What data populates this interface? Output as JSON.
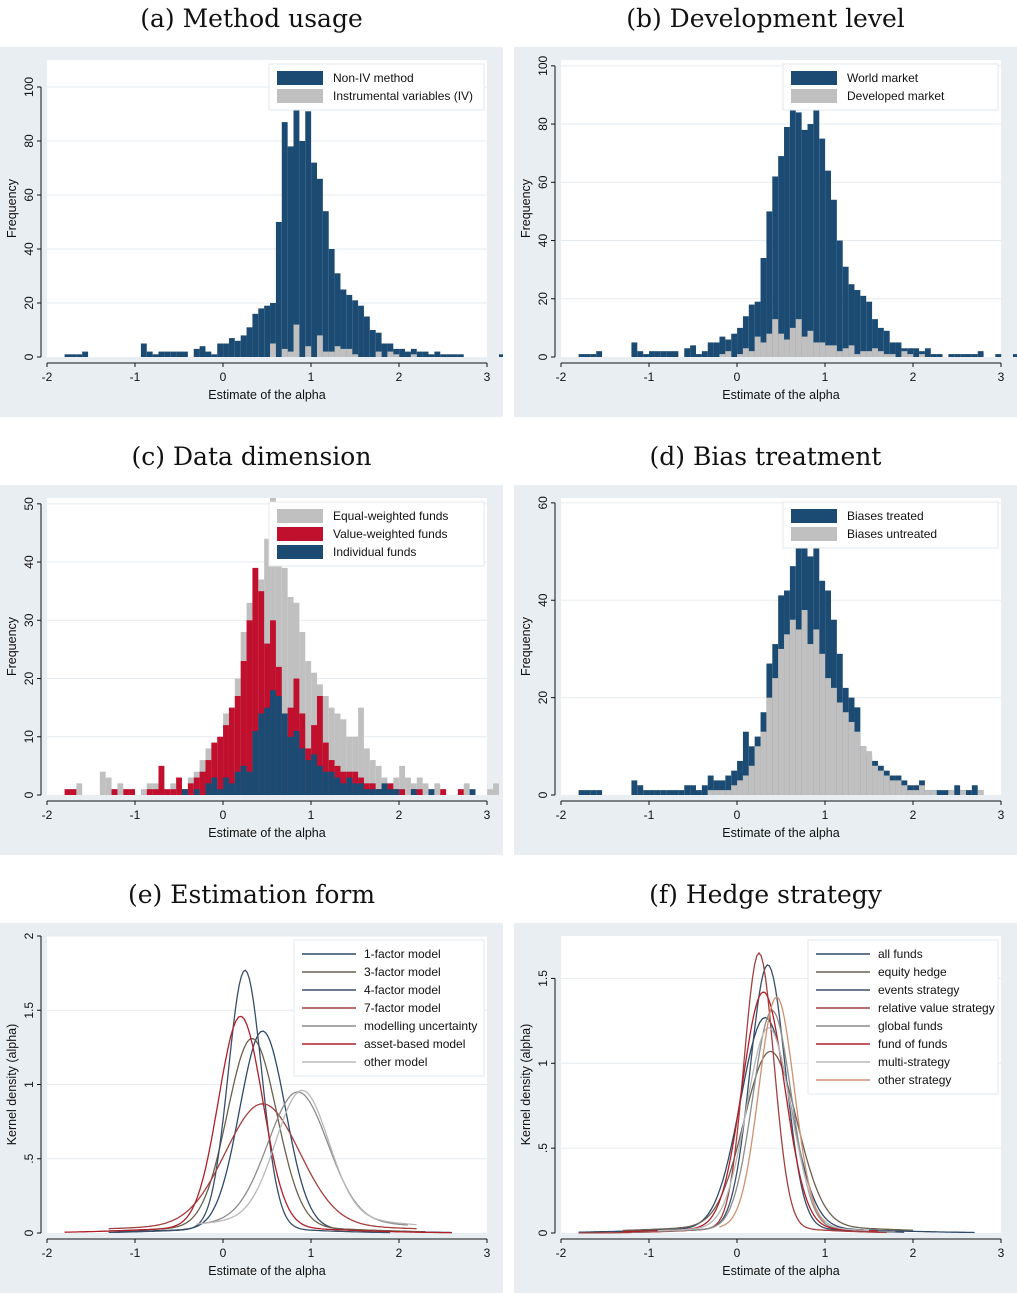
{
  "panels": [
    {
      "id": "a",
      "title": "(a) Method usage"
    },
    {
      "id": "b",
      "title": "(b) Development level"
    },
    {
      "id": "c",
      "title": "(c) Data dimension"
    },
    {
      "id": "d",
      "title": "(d) Bias treatment"
    },
    {
      "id": "e",
      "title": "(e) Estimation form"
    },
    {
      "id": "f",
      "title": "(f) Hedge strategy"
    }
  ],
  "chart_data": [
    {
      "type": "histogram",
      "title": "(a) Method usage",
      "xlabel": "Estimate of the alpha",
      "ylabel": "Frequency",
      "xlim": [
        -2,
        3
      ],
      "ylim": [
        0,
        110
      ],
      "xticks": [
        -2,
        -1,
        0,
        1,
        2,
        3
      ],
      "yticks": [
        0,
        20,
        40,
        60,
        80,
        100
      ],
      "grid": true,
      "legend_position": "top-right",
      "bin_start": -1.8,
      "bin_width": 0.0667,
      "series": [
        {
          "name": "Non-IV method",
          "color": "#1b4b72",
          "values": [
            1,
            1,
            1,
            2,
            0,
            0,
            0,
            0,
            0,
            0,
            0,
            0,
            0,
            5,
            2,
            1,
            2,
            2,
            2,
            2,
            2,
            0,
            3,
            4,
            2,
            1,
            5,
            5,
            7,
            6,
            8,
            11,
            16,
            18,
            19,
            20,
            50,
            87,
            78,
            96,
            80,
            91,
            72,
            66,
            54,
            40,
            31,
            25,
            23,
            21,
            19,
            15,
            10,
            9,
            5,
            5,
            3,
            3,
            2,
            3,
            2,
            2,
            1,
            2,
            1,
            1,
            1,
            1,
            0,
            0,
            0,
            0,
            0,
            0,
            1,
            0,
            0,
            1
          ]
        },
        {
          "name": "Instrumental variables (IV)",
          "color": "#c0c0c0",
          "values": [
            0,
            0,
            0,
            0,
            0,
            0,
            0,
            0,
            0,
            0,
            0,
            0,
            0,
            0,
            0,
            0,
            0,
            0,
            0,
            0,
            0,
            0,
            0,
            0,
            0,
            0,
            0,
            0,
            0,
            0,
            0,
            0,
            0,
            0,
            0,
            5,
            0,
            3,
            2,
            12,
            0,
            4,
            0,
            8,
            2,
            2,
            4,
            3,
            3,
            1,
            0,
            0,
            0,
            2,
            0,
            2,
            1,
            0,
            0,
            1,
            0,
            0,
            0,
            0,
            0,
            0,
            0,
            0,
            0,
            0,
            0,
            0,
            0,
            0,
            0,
            0,
            0,
            0
          ]
        }
      ]
    },
    {
      "type": "histogram",
      "title": "(b) Development level",
      "xlabel": "Estimate of the alpha",
      "ylabel": "Frequency",
      "xlim": [
        -2,
        3
      ],
      "ylim": [
        0,
        102
      ],
      "xticks": [
        -2,
        -1,
        0,
        1,
        2,
        3
      ],
      "yticks": [
        0,
        20,
        40,
        60,
        80,
        100
      ],
      "grid": true,
      "legend_position": "top-right",
      "bin_start": -1.8,
      "bin_width": 0.0667,
      "series": [
        {
          "name": "World market",
          "color": "#1b4b72",
          "values": [
            1,
            1,
            1,
            2,
            0,
            0,
            0,
            0,
            0,
            5,
            2,
            1,
            2,
            2,
            2,
            2,
            2,
            0,
            3,
            4,
            1,
            2,
            5,
            5,
            7,
            6,
            8,
            10,
            14,
            18,
            19,
            34,
            50,
            62,
            69,
            79,
            85,
            84,
            78,
            80,
            98,
            75,
            64,
            54,
            40,
            31,
            25,
            23,
            21,
            19,
            13,
            10,
            9,
            5,
            5,
            3,
            3,
            3,
            2,
            3,
            1,
            1,
            0,
            1,
            1,
            1,
            1,
            1,
            2,
            0,
            0,
            1,
            0,
            0,
            1,
            0,
            0,
            0
          ]
        },
        {
          "name": "Developed market",
          "color": "#c0c0c0",
          "values": [
            0,
            0,
            0,
            0,
            0,
            0,
            0,
            0,
            0,
            0,
            0,
            0,
            0,
            0,
            0,
            0,
            0,
            0,
            0,
            0,
            0,
            0,
            0,
            0,
            1,
            2,
            0,
            1,
            3,
            2,
            7,
            5,
            8,
            13,
            8,
            6,
            10,
            13,
            7,
            9,
            5,
            5,
            4,
            4,
            2,
            3,
            4,
            1,
            2,
            2,
            3,
            2,
            1,
            1,
            0,
            2,
            1,
            0,
            1,
            0,
            0,
            0,
            0,
            0,
            0,
            0,
            0,
            0,
            0,
            0,
            0,
            0,
            0,
            0,
            0,
            0,
            0,
            0
          ]
        }
      ]
    },
    {
      "type": "histogram",
      "title": "(c) Data dimension",
      "xlabel": "Estimate of the alpha",
      "ylabel": "Frequency",
      "xlim": [
        -2,
        3
      ],
      "ylim": [
        0,
        51
      ],
      "xticks": [
        -2,
        -1,
        0,
        1,
        2,
        3
      ],
      "yticks": [
        0,
        10,
        20,
        30,
        40,
        50
      ],
      "grid": true,
      "legend_position": "top-right",
      "bin_start": -1.8,
      "bin_width": 0.0667,
      "series": [
        {
          "name": "Equal-weighted funds",
          "color": "#c0c0c0",
          "values": [
            1,
            1,
            2,
            0,
            0,
            0,
            4,
            3,
            1,
            2,
            1,
            1,
            0,
            1,
            2,
            2,
            1,
            1,
            2,
            0,
            1,
            3,
            4,
            6,
            8,
            7,
            6,
            14,
            15,
            20,
            28,
            33,
            35,
            37,
            44,
            51,
            48,
            39,
            34,
            33,
            28,
            23,
            21,
            19,
            17,
            15,
            14,
            13,
            10,
            10,
            15,
            8,
            6,
            5,
            3,
            2,
            3,
            5,
            3,
            2,
            3,
            2,
            1,
            2,
            1,
            0,
            0,
            1,
            2,
            0,
            0,
            0,
            1,
            2,
            0,
            0,
            2,
            0
          ]
        },
        {
          "name": "Value-weighted funds",
          "color": "#c0102e",
          "values": [
            1,
            1,
            0,
            0,
            0,
            0,
            0,
            0,
            1,
            0,
            1,
            1,
            0,
            0,
            1,
            1,
            5,
            1,
            1,
            3,
            1,
            2,
            3,
            4,
            6,
            9,
            10,
            12,
            15,
            17,
            23,
            30,
            39,
            35,
            26,
            30,
            22,
            10,
            15,
            20,
            14,
            8,
            12,
            17,
            9,
            6,
            5,
            4,
            4,
            4,
            3,
            2,
            2,
            1,
            1,
            2,
            1,
            1,
            0,
            1,
            1,
            0,
            0,
            0,
            1,
            0,
            0,
            1,
            0,
            0,
            0,
            0,
            0,
            0,
            0,
            0,
            0,
            0
          ]
        },
        {
          "name": "Individual funds",
          "color": "#1b4b72",
          "values": [
            0,
            0,
            0,
            0,
            0,
            0,
            0,
            0,
            0,
            0,
            0,
            0,
            0,
            0,
            0,
            0,
            0,
            0,
            0,
            0,
            1,
            0,
            1,
            0,
            2,
            3,
            1,
            3,
            2,
            4,
            5,
            4,
            11,
            14,
            15,
            18,
            17,
            14,
            10,
            11,
            8,
            6,
            7,
            5,
            4,
            4,
            3,
            2,
            3,
            2,
            2,
            1,
            1,
            1,
            2,
            1,
            1,
            0,
            0,
            1,
            0,
            0,
            1,
            0,
            0,
            0,
            0,
            0,
            0,
            1,
            0,
            0,
            0,
            0,
            0,
            0,
            0,
            0
          ]
        }
      ]
    },
    {
      "type": "histogram",
      "title": "(d) Bias treatment",
      "xlabel": "Estimate of the alpha",
      "ylabel": "Frequency",
      "xlim": [
        -2,
        3
      ],
      "ylim": [
        0,
        61
      ],
      "xticks": [
        -2,
        -1,
        0,
        1,
        2,
        3
      ],
      "yticks": [
        0,
        20,
        40,
        60
      ],
      "grid": true,
      "legend_position": "top-right",
      "bin_start": -1.8,
      "bin_width": 0.0667,
      "series": [
        {
          "name": "Biases treated",
          "color": "#1b4b72",
          "values": [
            1,
            1,
            1,
            1,
            0,
            0,
            0,
            0,
            0,
            3,
            2,
            1,
            1,
            1,
            1,
            1,
            1,
            1,
            2,
            2,
            1,
            2,
            4,
            3,
            3,
            4,
            5,
            7,
            13,
            10,
            12,
            17,
            27,
            31,
            41,
            42,
            47,
            55,
            59,
            49,
            53,
            44,
            42,
            36,
            29,
            22,
            20,
            18,
            10,
            8,
            7,
            6,
            5,
            4,
            4,
            3,
            2,
            2,
            3,
            1,
            1,
            1,
            1,
            1,
            2,
            1,
            1,
            2,
            1,
            0,
            0,
            0,
            0,
            0,
            0,
            0,
            0,
            0
          ]
        },
        {
          "name": "Biases untreated",
          "color": "#c0c0c0",
          "values": [
            0,
            0,
            0,
            0,
            0,
            0,
            0,
            0,
            0,
            0,
            0,
            0,
            0,
            0,
            0,
            0,
            0,
            0,
            0,
            0,
            0,
            0,
            1,
            1,
            1,
            1,
            2,
            3,
            4,
            6,
            10,
            13,
            20,
            24,
            30,
            33,
            36,
            34,
            38,
            31,
            34,
            29,
            24,
            22,
            19,
            17,
            15,
            13,
            10,
            9,
            6,
            5,
            4,
            3,
            3,
            2,
            1,
            1,
            2,
            1,
            1,
            0,
            0,
            1,
            0,
            1,
            0,
            0,
            1,
            0,
            0,
            0,
            0,
            0,
            0,
            0,
            1,
            2
          ]
        }
      ]
    },
    {
      "type": "line",
      "title": "(e) Estimation form",
      "xlabel": "Estimate of the alpha",
      "ylabel": "Kernel density (alpha)",
      "xlim": [
        -2,
        3
      ],
      "ylim": [
        0,
        2
      ],
      "xticks": [
        -2,
        -1,
        0,
        1,
        2,
        3
      ],
      "yticks": [
        0,
        0.5,
        1,
        1.5,
        2
      ],
      "ytick_labels": [
        "0",
        ".5",
        "1",
        "1.5",
        "2"
      ],
      "grid": true,
      "legend_position": "top-right",
      "series": [
        {
          "name": "1-factor model",
          "color": "#2d4a6b",
          "mu": 0.45,
          "sigma": 0.26,
          "peak": 1.33,
          "xmin": -1.2,
          "xmax": 2.6,
          "tail": 0.03
        },
        {
          "name": "3-factor model",
          "color": "#6a6150",
          "mu": 0.33,
          "sigma": 0.28,
          "peak": 1.27,
          "xmin": -1.3,
          "xmax": 2.3,
          "tail": 0.04
        },
        {
          "name": "4-factor model",
          "color": "#3a4f68",
          "mu": 0.25,
          "sigma": 0.19,
          "peak": 1.74,
          "xmin": -1.3,
          "xmax": 1.9,
          "tail": 0.03
        },
        {
          "name": "7-factor model",
          "color": "#a33f3f",
          "mu": 0.45,
          "sigma": 0.42,
          "peak": 0.82,
          "xmin": -1.3,
          "xmax": 2.2,
          "tail": 0.05
        },
        {
          "name": "modelling uncertainty",
          "color": "#8c8c8c",
          "mu": 0.85,
          "sigma": 0.34,
          "peak": 0.87,
          "xmin": -0.2,
          "xmax": 2.1,
          "tail": 0.08
        },
        {
          "name": "asset-based model",
          "color": "#b0202a",
          "mu": 0.2,
          "sigma": 0.25,
          "peak": 1.42,
          "xmin": -1.8,
          "xmax": 2.6,
          "tail": 0.04
        },
        {
          "name": "other model",
          "color": "#b8b8b8",
          "mu": 0.9,
          "sigma": 0.3,
          "peak": 0.86,
          "xmin": -0.3,
          "xmax": 2.2,
          "tail": 0.1
        }
      ]
    },
    {
      "type": "line",
      "title": "(f) Hedge strategy",
      "xlabel": "Estimate of the alpha",
      "ylabel": "Kernel density (alpha)",
      "xlim": [
        -2,
        3
      ],
      "ylim": [
        0,
        1.75
      ],
      "xticks": [
        -2,
        -1,
        0,
        1,
        2,
        3
      ],
      "yticks": [
        0,
        0.5,
        1,
        1.5
      ],
      "ytick_labels": [
        "0",
        ".5",
        "1",
        "1.5"
      ],
      "grid": true,
      "legend_position": "top-right",
      "series": [
        {
          "name": "all funds",
          "color": "#2d4a6b",
          "mu": 0.32,
          "sigma": 0.28,
          "peak": 1.24,
          "xmin": -1.8,
          "xmax": 2.7,
          "tail": 0.03
        },
        {
          "name": "equity hedge",
          "color": "#6a6150",
          "mu": 0.38,
          "sigma": 0.3,
          "peak": 1.03,
          "xmin": -1.3,
          "xmax": 2.0,
          "tail": 0.04
        },
        {
          "name": "events strategy",
          "color": "#3a4f68",
          "mu": 0.35,
          "sigma": 0.2,
          "peak": 1.55,
          "xmin": -1.3,
          "xmax": 1.9,
          "tail": 0.03
        },
        {
          "name": "relative value strategy",
          "color": "#a33f3f",
          "mu": 0.25,
          "sigma": 0.17,
          "peak": 1.62,
          "xmin": -1.8,
          "xmax": 1.7,
          "tail": 0.03
        },
        {
          "name": "global funds",
          "color": "#8c8c8c",
          "mu": 0.4,
          "sigma": 0.22,
          "peak": 1.28,
          "xmin": -1.2,
          "xmax": 1.8,
          "tail": 0.03
        },
        {
          "name": "fund of funds",
          "color": "#b0202a",
          "mu": 0.3,
          "sigma": 0.24,
          "peak": 1.39,
          "xmin": -1.3,
          "xmax": 1.6,
          "tail": 0.03
        },
        {
          "name": "multi-strategy",
          "color": "#b8b8b8",
          "mu": 0.36,
          "sigma": 0.25,
          "peak": 1.18,
          "xmin": -0.9,
          "xmax": 1.5,
          "tail": 0.03
        },
        {
          "name": "other strategy",
          "color": "#d09070",
          "mu": 0.45,
          "sigma": 0.2,
          "peak": 1.35,
          "xmin": -0.2,
          "xmax": 1.0,
          "tail": 0.04
        }
      ]
    }
  ]
}
